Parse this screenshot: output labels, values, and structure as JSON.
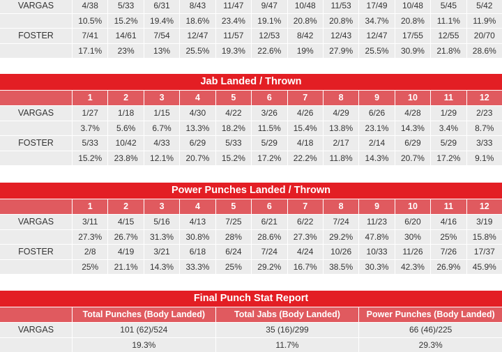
{
  "tables": [
    {
      "id": "total-punches",
      "title": null,
      "headers": null,
      "rows": [
        {
          "name": "VARGAS",
          "counts": [
            "4/38",
            "5/33",
            "6/31",
            "8/43",
            "11/47",
            "9/47",
            "10/48",
            "11/53",
            "17/49",
            "10/48",
            "5/45",
            "5/42"
          ],
          "pcts": [
            "10.5%",
            "15.2%",
            "19.4%",
            "18.6%",
            "23.4%",
            "19.1%",
            "20.8%",
            "20.8%",
            "34.7%",
            "20.8%",
            "11.1%",
            "11.9%"
          ]
        },
        {
          "name": "FOSTER",
          "counts": [
            "7/41",
            "14/61",
            "7/54",
            "12/47",
            "11/57",
            "12/53",
            "8/42",
            "12/43",
            "12/47",
            "17/55",
            "12/55",
            "20/70"
          ],
          "pcts": [
            "17.1%",
            "23%",
            "13%",
            "25.5%",
            "19.3%",
            "22.6%",
            "19%",
            "27.9%",
            "25.5%",
            "30.9%",
            "21.8%",
            "28.6%"
          ]
        }
      ]
    },
    {
      "id": "jab",
      "title": "Jab Landed / Thrown",
      "headers": [
        "1",
        "2",
        "3",
        "4",
        "5",
        "6",
        "7",
        "8",
        "9",
        "10",
        "11",
        "12"
      ],
      "rows": [
        {
          "name": "VARGAS",
          "counts": [
            "1/27",
            "1/18",
            "1/15",
            "4/30",
            "4/22",
            "3/26",
            "4/26",
            "4/29",
            "6/26",
            "4/28",
            "1/29",
            "2/23"
          ],
          "pcts": [
            "3.7%",
            "5.6%",
            "6.7%",
            "13.3%",
            "18.2%",
            "11.5%",
            "15.4%",
            "13.8%",
            "23.1%",
            "14.3%",
            "3.4%",
            "8.7%"
          ]
        },
        {
          "name": "FOSTER",
          "counts": [
            "5/33",
            "10/42",
            "4/33",
            "6/29",
            "5/33",
            "5/29",
            "4/18",
            "2/17",
            "2/14",
            "6/29",
            "5/29",
            "3/33"
          ],
          "pcts": [
            "15.2%",
            "23.8%",
            "12.1%",
            "20.7%",
            "15.2%",
            "17.2%",
            "22.2%",
            "11.8%",
            "14.3%",
            "20.7%",
            "17.2%",
            "9.1%"
          ]
        }
      ]
    },
    {
      "id": "power",
      "title": "Power Punches Landed / Thrown",
      "headers": [
        "1",
        "2",
        "3",
        "4",
        "5",
        "6",
        "7",
        "8",
        "9",
        "10",
        "11",
        "12"
      ],
      "rows": [
        {
          "name": "VARGAS",
          "counts": [
            "3/11",
            "4/15",
            "5/16",
            "4/13",
            "7/25",
            "6/21",
            "6/22",
            "7/24",
            "11/23",
            "6/20",
            "4/16",
            "3/19"
          ],
          "pcts": [
            "27.3%",
            "26.7%",
            "31.3%",
            "30.8%",
            "28%",
            "28.6%",
            "27.3%",
            "29.2%",
            "47.8%",
            "30%",
            "25%",
            "15.8%"
          ]
        },
        {
          "name": "FOSTER",
          "counts": [
            "2/8",
            "4/19",
            "3/21",
            "6/18",
            "6/24",
            "7/24",
            "4/24",
            "10/26",
            "10/33",
            "11/26",
            "7/26",
            "17/37"
          ],
          "pcts": [
            "25%",
            "21.1%",
            "14.3%",
            "33.3%",
            "25%",
            "29.2%",
            "16.7%",
            "38.5%",
            "30.3%",
            "42.3%",
            "26.9%",
            "45.9%"
          ]
        }
      ]
    },
    {
      "id": "final",
      "title": "Final Punch Stat Report",
      "headers": [
        "Total Punches (Body Landed)",
        "Total Jabs (Body Landed)",
        "Power Punches (Body Landed)"
      ],
      "rows": [
        {
          "name": "VARGAS",
          "counts": [
            "101 (62)/524",
            "35 (16)/299",
            "66 (46)/225"
          ],
          "pcts": [
            "19.3%",
            "11.7%",
            "29.3%"
          ]
        }
      ]
    }
  ],
  "colors": {
    "title_bg": "#e31e24",
    "header_bg": "#e05a5f",
    "cell_bg": "#ececec"
  }
}
